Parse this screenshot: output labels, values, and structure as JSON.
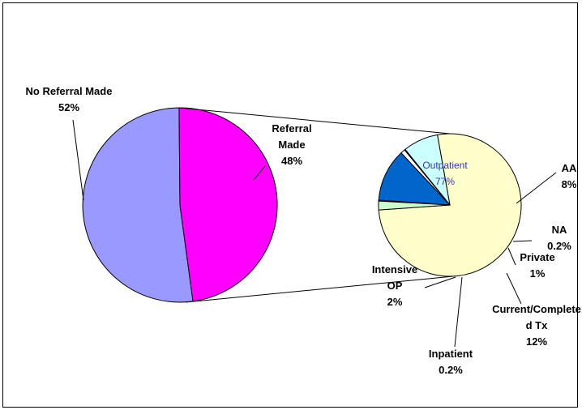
{
  "chart_data": {
    "type": "pie",
    "subtype": "pie-of-pie",
    "title": "",
    "main_pie": {
      "slices": [
        {
          "line1": "No Referral Made",
          "line2": "",
          "line3": "",
          "pct_label": "52%",
          "value": 52,
          "color": "#9999ff"
        },
        {
          "line1": "Referral",
          "line2": "Made",
          "line3": "",
          "pct_label": "48%",
          "value": 48,
          "color": "#ff00ff"
        }
      ]
    },
    "breakout_of": "Referral Made",
    "secondary_pie": {
      "slices": [
        {
          "line1": "Outpatient",
          "line2": "",
          "line3": "",
          "pct_label": "77%",
          "value": 77,
          "color": "#ffffcc"
        },
        {
          "line1": "AA",
          "line2": "",
          "line3": "",
          "pct_label": "8%",
          "value": 8,
          "color": "#ccffff"
        },
        {
          "line1": "NA",
          "line2": "",
          "line3": "",
          "pct_label": "0.2%",
          "value": 0.2,
          "color": "#ff8080"
        },
        {
          "line1": "Private",
          "line2": "",
          "line3": "",
          "pct_label": "1%",
          "value": 1,
          "color": "#ffffff"
        },
        {
          "line1": "Current/Complete",
          "line2": "d Tx",
          "line3": "",
          "pct_label": "12%",
          "value": 12,
          "color": "#0066cc"
        },
        {
          "line1": "Inpatient",
          "line2": "",
          "line3": "",
          "pct_label": "0.2%",
          "value": 0.2,
          "color": "#ccffcc"
        },
        {
          "line1": "Intensive",
          "line2": "OP",
          "line3": "",
          "pct_label": "2%",
          "value": 2,
          "color": "#ccffcc"
        }
      ]
    },
    "legend": "none"
  }
}
